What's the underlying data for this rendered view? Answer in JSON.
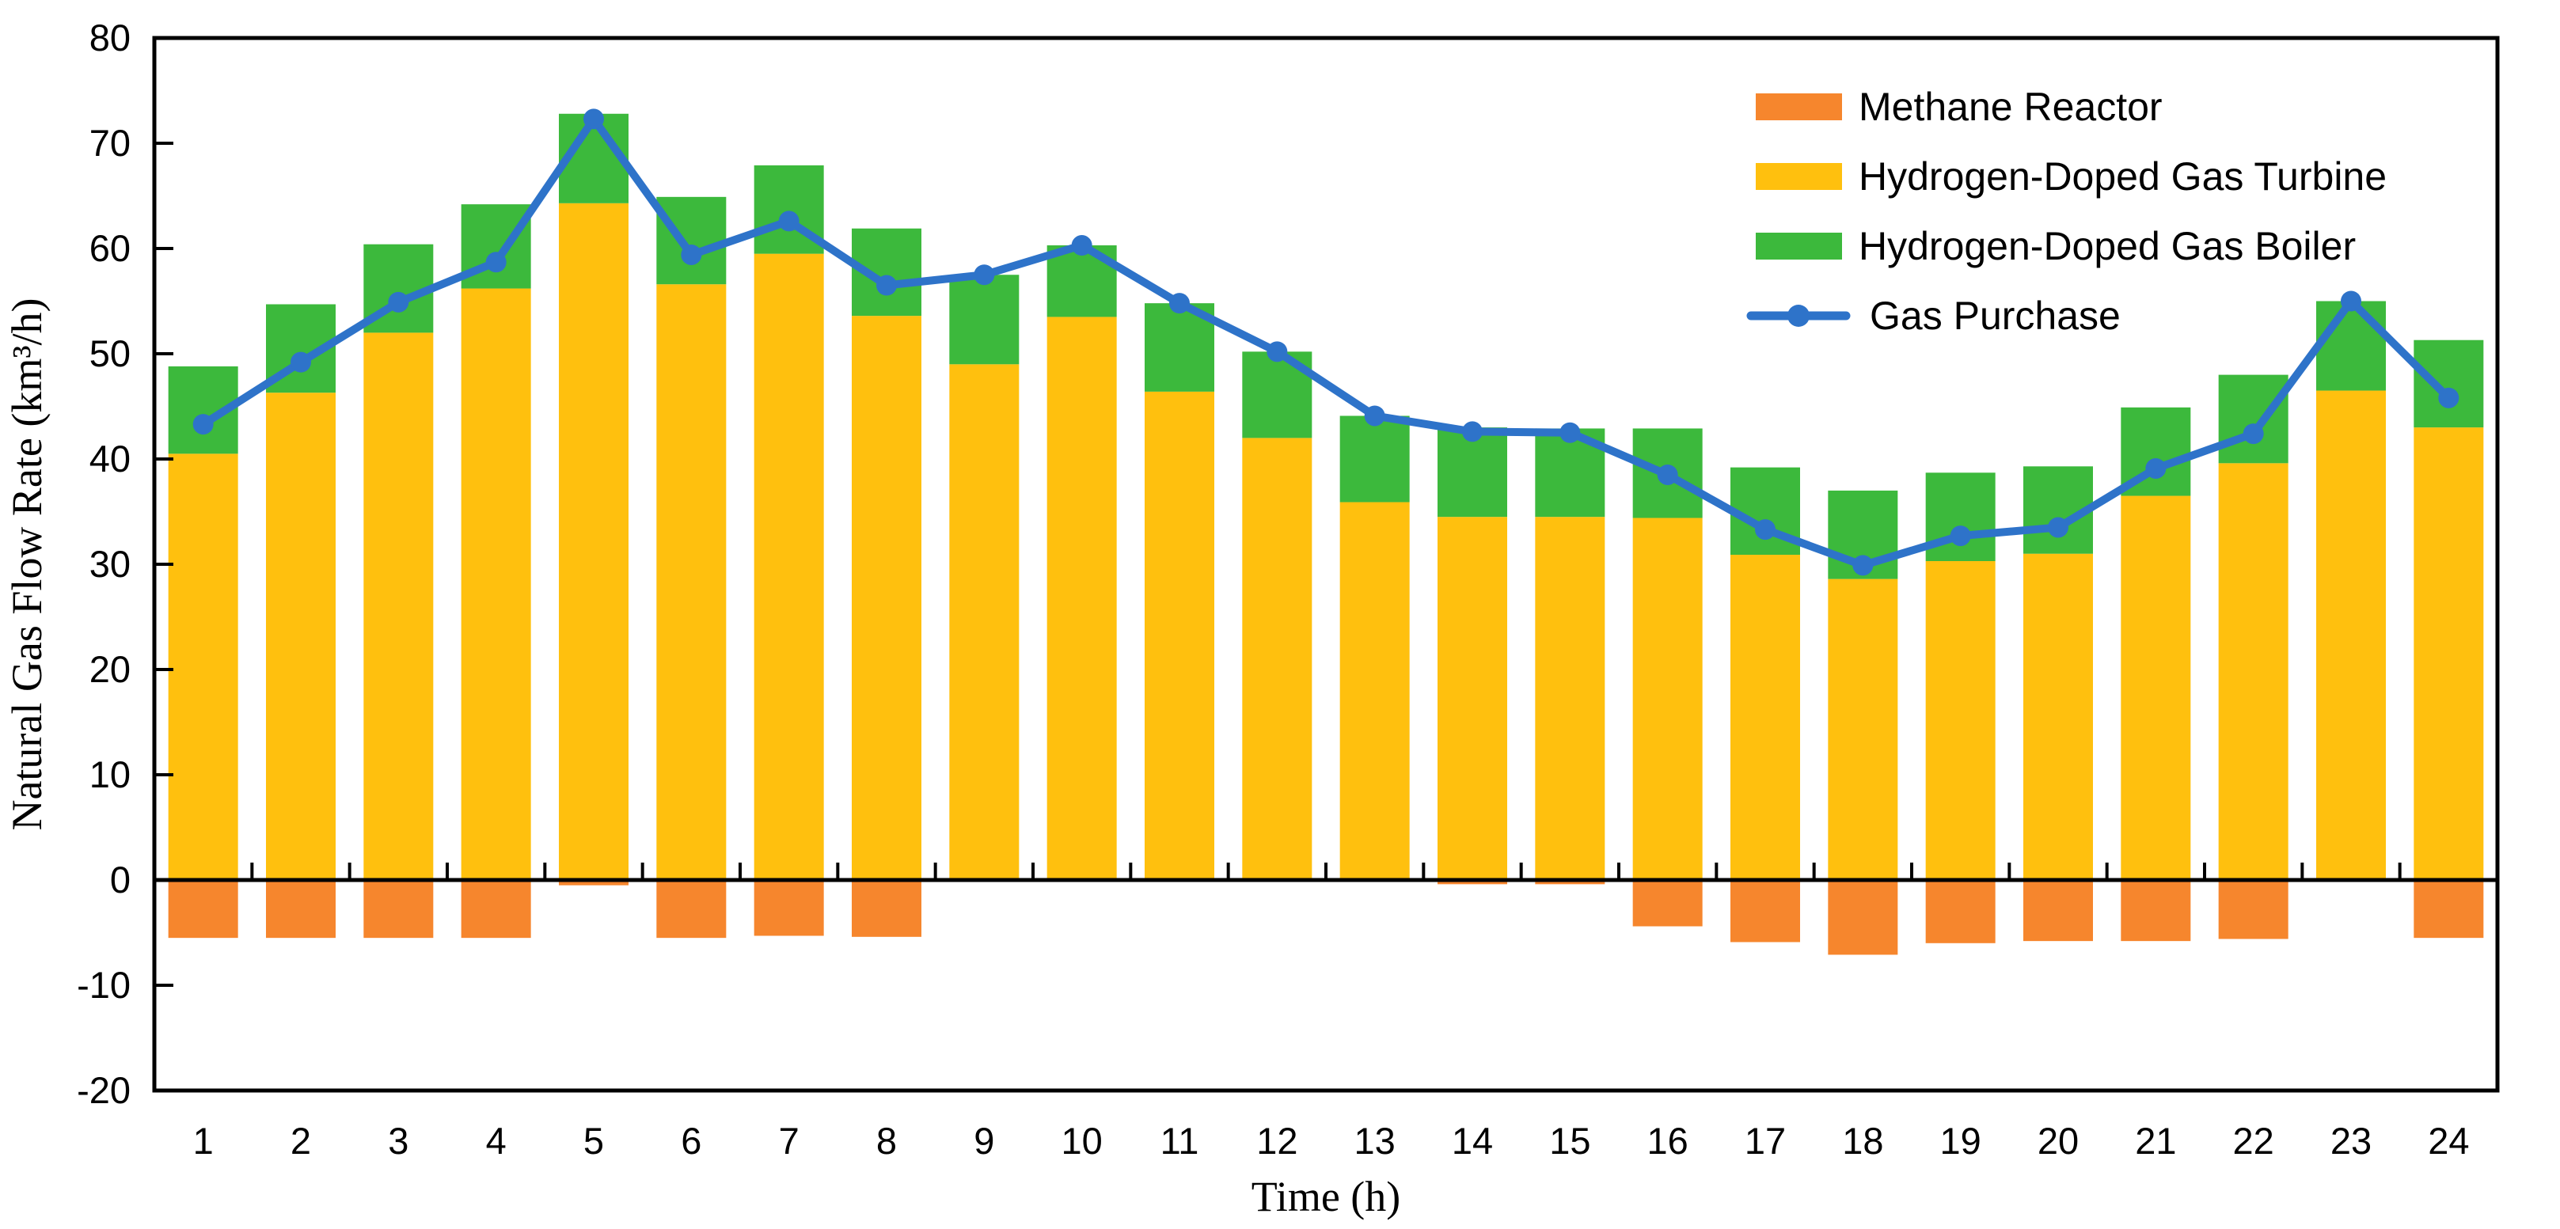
{
  "chart_data": {
    "type": "bar",
    "subtype": "stacked-bar-with-line-overlay",
    "title": "",
    "xlabel": "Time (h)",
    "ylabel": "Natural Gas Flow Rate (km³/h)",
    "ylim": [
      -20,
      80
    ],
    "ytick_step": 10,
    "ytick_labels": [
      "-20",
      "-10",
      "0",
      "10",
      "20",
      "30",
      "40",
      "50",
      "60",
      "70",
      "80"
    ],
    "grid": false,
    "legend_position": "upper-right",
    "categories": [
      1,
      2,
      3,
      4,
      5,
      6,
      7,
      8,
      9,
      10,
      11,
      12,
      13,
      14,
      15,
      16,
      17,
      18,
      19,
      20,
      21,
      22,
      23,
      24
    ],
    "series": [
      {
        "name": "Methane Reactor",
        "type": "bar",
        "color": "#F6862D",
        "values": [
          -5.5,
          -5.5,
          -5.5,
          -5.5,
          -0.5,
          -5.5,
          -5.3,
          -5.4,
          0,
          0,
          0,
          0,
          0,
          -0.4,
          -0.4,
          -4.4,
          -5.9,
          -7.1,
          -6.0,
          -5.8,
          -5.8,
          -5.6,
          0,
          -5.5
        ]
      },
      {
        "name": "Hydrogen-Doped Gas Turbine",
        "type": "bar",
        "color": "#FFC00E",
        "values": [
          40.5,
          46.3,
          52.0,
          56.2,
          64.3,
          56.6,
          59.5,
          53.6,
          49.0,
          53.5,
          46.4,
          42.0,
          35.9,
          34.5,
          34.5,
          34.4,
          30.9,
          28.6,
          30.3,
          31.0,
          36.5,
          39.6,
          46.5,
          43.0
        ]
      },
      {
        "name": "Hydrogen-Doped Gas Boiler",
        "type": "bar",
        "color": "#3CB93C",
        "values": [
          8.3,
          8.4,
          8.4,
          8.0,
          8.5,
          8.3,
          8.4,
          8.3,
          8.5,
          6.8,
          8.4,
          8.2,
          8.2,
          8.5,
          8.4,
          8.5,
          8.3,
          8.4,
          8.4,
          8.3,
          8.4,
          8.4,
          8.5,
          8.3
        ]
      },
      {
        "name": "Gas Purchase",
        "type": "line",
        "color": "#2E73C9",
        "values": [
          43.3,
          49.2,
          54.9,
          58.7,
          72.3,
          59.4,
          62.6,
          56.5,
          57.5,
          60.3,
          54.8,
          50.2,
          44.1,
          42.6,
          42.5,
          38.5,
          33.3,
          29.9,
          32.7,
          33.5,
          39.1,
          42.4,
          55.0,
          45.8
        ]
      }
    ]
  }
}
